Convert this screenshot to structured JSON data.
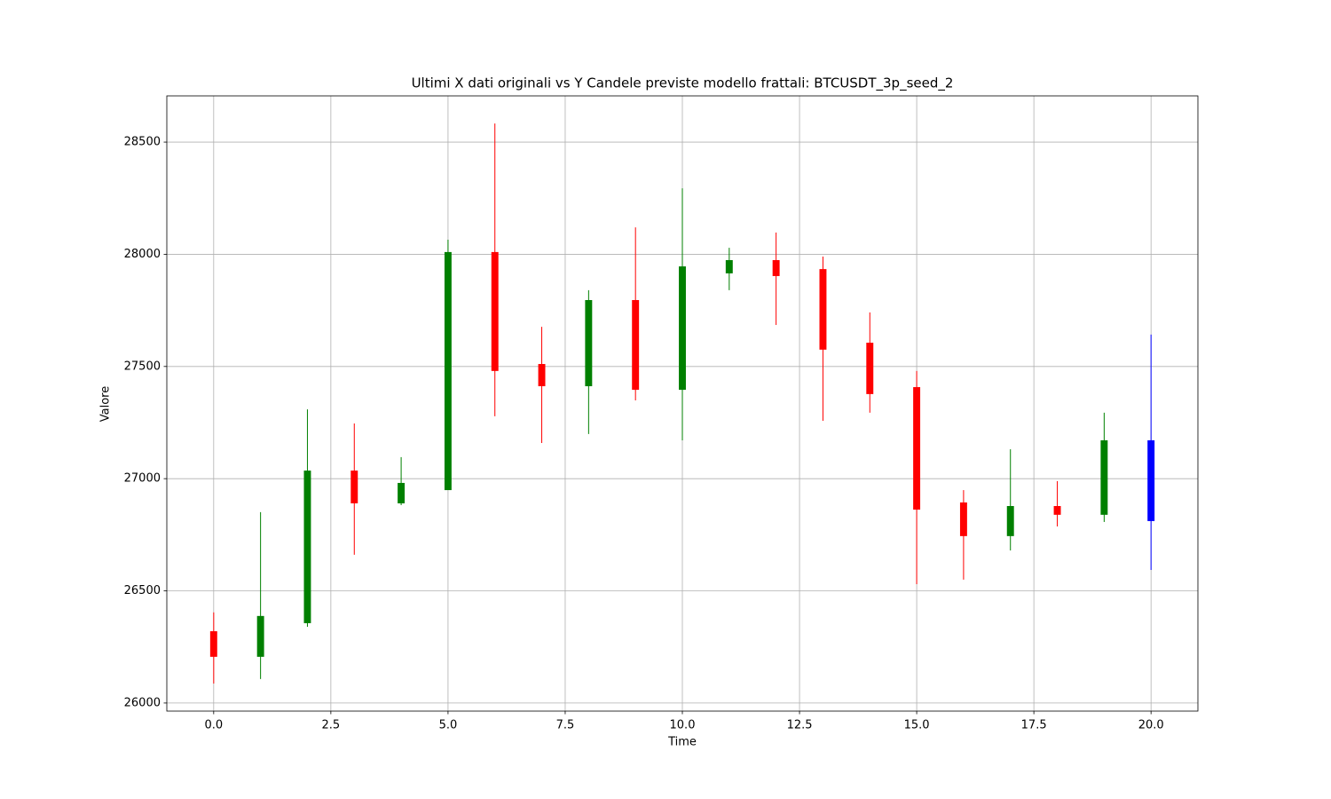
{
  "chart_data": {
    "type": "candlestick",
    "title": "Ultimi X dati originali vs Y Candele previste modello frattali: BTCUSDT_3p_seed_2",
    "x_label": "Time",
    "y_label": "Valore",
    "x": [
      0,
      1,
      2,
      3,
      4,
      5,
      6,
      7,
      8,
      9,
      10,
      11,
      12,
      13,
      14,
      15,
      16,
      17,
      18,
      19,
      20
    ],
    "open": [
      26320,
      26206,
      26356,
      27036,
      26890,
      26949,
      28010,
      27511,
      27412,
      27796,
      27396,
      27915,
      27974,
      27934,
      27606,
      27408,
      26894,
      26744,
      26878,
      26839,
      27171
    ],
    "high": [
      26404,
      26851,
      27309,
      27246,
      27096,
      28065,
      28583,
      27677,
      27840,
      28120,
      28294,
      28029,
      28097,
      27990,
      27741,
      27480,
      26949,
      27131,
      26989,
      27294,
      27642
    ],
    "low": [
      26087,
      26107,
      26340,
      26661,
      26882,
      26949,
      27278,
      27159,
      27199,
      27349,
      27171,
      27840,
      27685,
      27258,
      27294,
      26530,
      26550,
      26680,
      26787,
      26807,
      26593
    ],
    "close": [
      26206,
      26388,
      27036,
      26890,
      26981,
      28010,
      27480,
      27412,
      27796,
      27396,
      27946,
      27974,
      27903,
      27575,
      27377,
      26862,
      26744,
      26878,
      26839,
      27171,
      26811
    ],
    "colors": [
      "red",
      "green",
      "green",
      "red",
      "green",
      "green",
      "red",
      "red",
      "green",
      "red",
      "green",
      "green",
      "red",
      "red",
      "red",
      "red",
      "red",
      "green",
      "red",
      "green",
      "blue"
    ],
    "xlim": [
      -1,
      21
    ],
    "ylim": [
      25964,
      28706
    ],
    "xticks": [
      {
        "value": 0,
        "label": "0.0"
      },
      2.5,
      {
        "value": 5,
        "label": "5.0"
      },
      7.5,
      {
        "value": 10,
        "label": "10.0"
      },
      12.5,
      {
        "value": 15,
        "label": "15.0"
      },
      17.5,
      {
        "value": 20,
        "label": "20.0"
      }
    ],
    "yticks": [
      26000,
      26500,
      27000,
      27500,
      28000,
      28500
    ],
    "grid": true
  }
}
